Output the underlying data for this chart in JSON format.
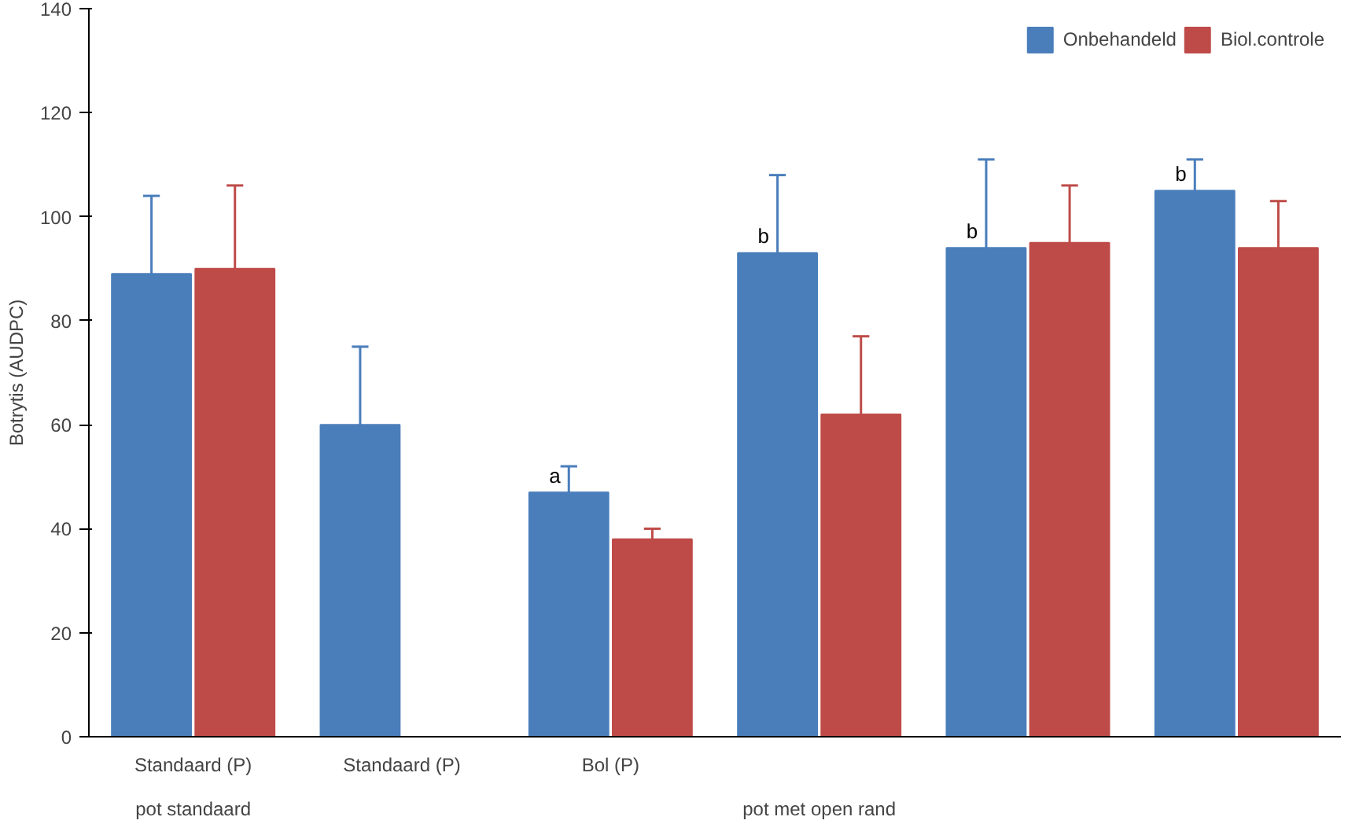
{
  "chart_data": {
    "type": "bar",
    "ylabel": "Botrytis (AUDPC)",
    "categories": [
      "Standaard (P)",
      "Standaard (P)",
      "Bol (P)",
      null,
      null,
      null
    ],
    "series": [
      {
        "name": "Onbehandeld",
        "color": "#4a7ebb",
        "values": [
          89,
          60,
          47,
          93,
          94,
          105
        ],
        "errors": [
          [
            89,
            104
          ],
          [
            60,
            75
          ],
          [
            47,
            52
          ],
          [
            93,
            108
          ],
          [
            94,
            111
          ],
          [
            105,
            111
          ]
        ],
        "value_labels": [
          null,
          null,
          "a",
          "b",
          "b",
          "b"
        ]
      },
      {
        "name": "Biol.controle",
        "color": "#be4b48",
        "values": [
          90,
          null,
          38,
          62,
          95,
          94
        ],
        "errors": [
          [
            90,
            106
          ],
          null,
          [
            38,
            40
          ],
          [
            62,
            77
          ],
          [
            95,
            106
          ],
          [
            94,
            103
          ]
        ]
      }
    ],
    "ylim": [
      0,
      140
    ],
    "yticks": [
      0,
      20,
      40,
      60,
      80,
      100,
      120,
      140
    ],
    "grid": false,
    "legend": "top right",
    "annotations": [
      "pot standaard",
      "pot met open rand"
    ]
  }
}
